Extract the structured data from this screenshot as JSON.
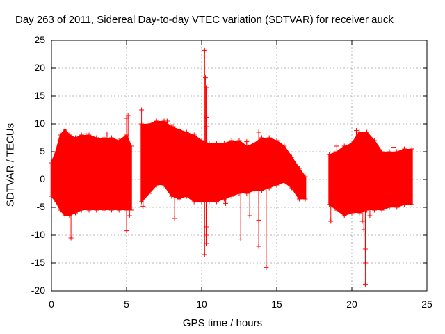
{
  "chart_data": {
    "type": "scatter",
    "title": "Day 263 of 2011, Sidereal Day-to-day VTEC variation (SDTVAR) for receiver auck",
    "xlabel": "GPS time / hours",
    "ylabel": "SDTVAR / TECUs",
    "xlim": [
      0,
      25
    ],
    "ylim": [
      -20,
      25
    ],
    "xticks": [
      "0",
      "5",
      "10",
      "15",
      "20",
      "25"
    ],
    "yticks": [
      "25",
      "20",
      "15",
      "10",
      "5",
      "0",
      "-5",
      "-10",
      "-15",
      "-20"
    ],
    "grid": true,
    "marker": "+",
    "series_color": "#ff0000",
    "series": [
      {
        "name": "SDTVAR",
        "segments": [
          {
            "x_start": 0.0,
            "x_end": 5.3,
            "envelope": [
              [
                0.0,
                -3.0,
                3.0
              ],
              [
                0.3,
                -4.0,
                5.0
              ],
              [
                0.6,
                -5.5,
                8.0
              ],
              [
                0.9,
                -6.5,
                9.0
              ],
              [
                1.2,
                -6.5,
                8.0
              ],
              [
                1.6,
                -6.0,
                7.5
              ],
              [
                2.0,
                -5.5,
                8.0
              ],
              [
                2.5,
                -5.5,
                8.0
              ],
              [
                3.0,
                -5.5,
                7.5
              ],
              [
                3.5,
                -5.5,
                7.5
              ],
              [
                4.0,
                -5.5,
                7.5
              ],
              [
                4.5,
                -5.5,
                7.0
              ],
              [
                5.0,
                -5.5,
                8.0
              ],
              [
                5.3,
                -5.5,
                6.0
              ]
            ]
          },
          {
            "x_start": 6.0,
            "x_end": 16.9,
            "envelope": [
              [
                6.0,
                -4.0,
                10.0
              ],
              [
                6.5,
                -2.5,
                10.0
              ],
              [
                7.0,
                -1.0,
                10.5
              ],
              [
                7.5,
                -1.0,
                10.5
              ],
              [
                8.0,
                -3.0,
                9.5
              ],
              [
                8.5,
                -3.5,
                9.0
              ],
              [
                9.0,
                -3.0,
                8.5
              ],
              [
                9.5,
                -4.0,
                8.0
              ],
              [
                10.0,
                -4.0,
                7.0
              ],
              [
                10.5,
                -4.0,
                6.5
              ],
              [
                11.0,
                -4.0,
                6.5
              ],
              [
                11.5,
                -3.5,
                6.5
              ],
              [
                12.0,
                -3.0,
                7.0
              ],
              [
                12.5,
                -2.5,
                7.0
              ],
              [
                13.0,
                -2.5,
                6.0
              ],
              [
                13.5,
                -2.0,
                6.5
              ],
              [
                14.0,
                -2.0,
                7.5
              ],
              [
                14.5,
                -1.5,
                7.5
              ],
              [
                15.0,
                -1.0,
                7.0
              ],
              [
                15.5,
                -0.5,
                6.0
              ],
              [
                16.0,
                -1.5,
                4.0
              ],
              [
                16.5,
                -3.5,
                2.0
              ],
              [
                16.9,
                -3.5,
                0.5
              ]
            ]
          },
          {
            "x_start": 18.5,
            "x_end": 24.0,
            "envelope": [
              [
                18.5,
                -4.5,
                4.5
              ],
              [
                19.0,
                -5.5,
                5.0
              ],
              [
                19.5,
                -6.5,
                6.0
              ],
              [
                20.0,
                -6.0,
                6.5
              ],
              [
                20.5,
                -6.0,
                8.5
              ],
              [
                21.0,
                -5.5,
                8.5
              ],
              [
                21.5,
                -5.5,
                7.0
              ],
              [
                22.0,
                -5.5,
                5.0
              ],
              [
                22.5,
                -5.0,
                5.0
              ],
              [
                23.0,
                -5.0,
                5.0
              ],
              [
                23.5,
                -4.5,
                5.5
              ],
              [
                24.0,
                -4.5,
                5.5
              ]
            ]
          }
        ],
        "outliers": [
          [
            1.3,
            -10.5
          ],
          [
            2.3,
            8.2
          ],
          [
            3.7,
            8.2
          ],
          [
            5.0,
            11.0
          ],
          [
            5.0,
            -9.2
          ],
          [
            5.1,
            11.5
          ],
          [
            5.2,
            -6.5
          ],
          [
            6.0,
            12.5
          ],
          [
            6.1,
            -4.8
          ],
          [
            7.7,
            10.5
          ],
          [
            8.1,
            9.5
          ],
          [
            8.2,
            -7.0
          ],
          [
            10.2,
            23.2
          ],
          [
            10.25,
            18.3
          ],
          [
            10.3,
            16.5
          ],
          [
            10.3,
            11.2
          ],
          [
            10.35,
            9.5
          ],
          [
            10.3,
            -8.5
          ],
          [
            10.3,
            -10.0
          ],
          [
            10.3,
            -11.5
          ],
          [
            10.2,
            -13.5
          ],
          [
            11.6,
            -4.3
          ],
          [
            12.6,
            -10.7
          ],
          [
            13.0,
            6.8
          ],
          [
            13.2,
            -6.5
          ],
          [
            13.8,
            8.5
          ],
          [
            13.8,
            -7.3
          ],
          [
            13.8,
            -12.0
          ],
          [
            14.3,
            -15.8
          ],
          [
            18.6,
            -7.5
          ],
          [
            19.0,
            6.0
          ],
          [
            20.3,
            8.8
          ],
          [
            20.7,
            -7.5
          ],
          [
            20.8,
            -9.0
          ],
          [
            20.9,
            -12.5
          ],
          [
            20.9,
            -15.0
          ],
          [
            20.9,
            -18.8
          ],
          [
            21.2,
            -6.5
          ],
          [
            22.8,
            5.8
          ],
          [
            24.0,
            5.5
          ]
        ]
      }
    ]
  }
}
